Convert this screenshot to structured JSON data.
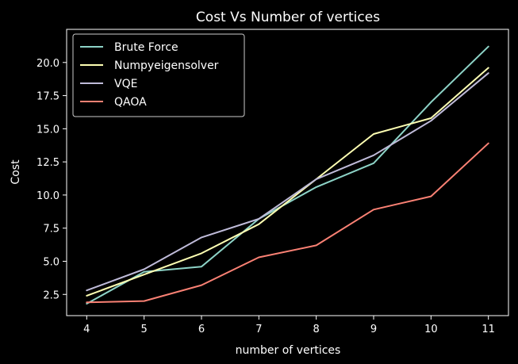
{
  "chart_data": {
    "type": "line",
    "title": "Cost Vs Number of vertices",
    "xlabel": "number of vertices",
    "ylabel": "Cost",
    "x": [
      4,
      5,
      6,
      7,
      8,
      9,
      10,
      11
    ],
    "xlim": [
      3.65,
      11.35
    ],
    "ylim": [
      0.9,
      22.5
    ],
    "xticks": [
      4,
      5,
      6,
      7,
      8,
      9,
      10,
      11
    ],
    "yticks": [
      2.5,
      5.0,
      7.5,
      10.0,
      12.5,
      15.0,
      17.5,
      20.0
    ],
    "ytick_labels": [
      "2.5",
      "5.0",
      "7.5",
      "10.0",
      "12.5",
      "15.0",
      "17.5",
      "20.0"
    ],
    "grid": false,
    "legend": "upper-left",
    "background": "#000000",
    "series": [
      {
        "name": "Brute Force",
        "color": "#8dd3c7",
        "values": [
          1.8,
          4.2,
          4.6,
          8.2,
          10.6,
          12.4,
          17.0,
          21.2
        ]
      },
      {
        "name": "Numpyeigensolver",
        "color": "#feffb3",
        "values": [
          2.4,
          4.0,
          5.6,
          7.8,
          11.2,
          14.6,
          15.8,
          19.6
        ]
      },
      {
        "name": "VQE",
        "color": "#bfbbd9",
        "values": [
          2.8,
          4.4,
          6.8,
          8.2,
          11.2,
          13.0,
          15.6,
          19.2
        ]
      },
      {
        "name": "QAOA",
        "color": "#fa8174",
        "values": [
          1.9,
          2.0,
          3.2,
          5.3,
          6.2,
          8.9,
          9.9,
          13.9
        ]
      }
    ]
  }
}
